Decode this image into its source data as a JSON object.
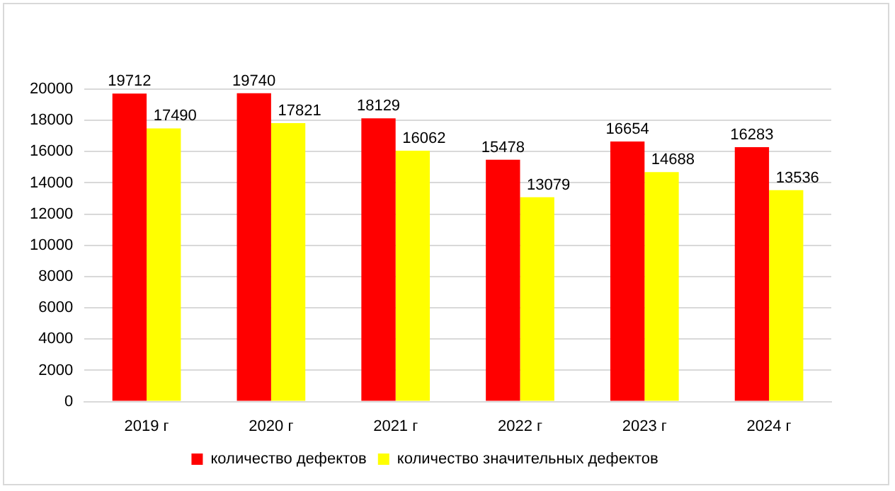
{
  "chart_data": {
    "type": "bar",
    "categories": [
      "2019 г",
      "2020 г",
      "2021 г",
      "2022 г",
      "2023 г",
      "2024 г"
    ],
    "series": [
      {
        "name": "количество дефектов",
        "color": "#ff0000",
        "values": [
          19712,
          19740,
          18129,
          15478,
          16654,
          16283
        ]
      },
      {
        "name": "количество значительных дефектов",
        "color": "#ffff00",
        "values": [
          17490,
          17821,
          16062,
          13079,
          14688,
          13536
        ]
      }
    ],
    "ylim": [
      0,
      20000
    ],
    "yticks": [
      0,
      2000,
      4000,
      6000,
      8000,
      10000,
      12000,
      14000,
      16000,
      18000,
      20000
    ],
    "grid": "y",
    "legend": "bottom",
    "data_labels": true
  }
}
